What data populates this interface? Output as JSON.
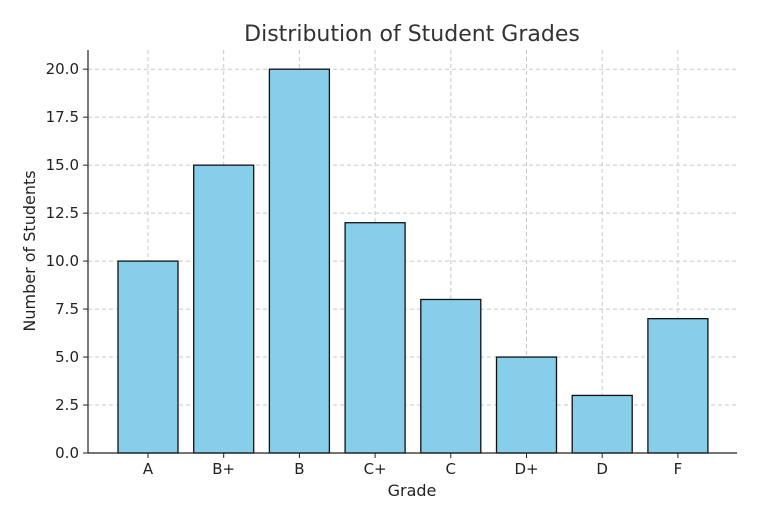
{
  "chart_data": {
    "type": "bar",
    "title": "Distribution of Student Grades",
    "xlabel": "Grade",
    "ylabel": "Number of Students",
    "categories": [
      "A",
      "B+",
      "B",
      "C+",
      "C",
      "D+",
      "D",
      "F"
    ],
    "values": [
      10,
      15,
      20,
      12,
      8,
      5,
      3,
      7
    ],
    "ylim": [
      0,
      21
    ],
    "yticks": [
      "0.0",
      "2.5",
      "5.0",
      "7.5",
      "10.0",
      "12.5",
      "15.0",
      "17.5",
      "20.0"
    ],
    "grid": true,
    "colors": {
      "bar_fill": "#87ceeb",
      "bar_edge": "#111111",
      "grid": "#c8c8c8"
    }
  }
}
